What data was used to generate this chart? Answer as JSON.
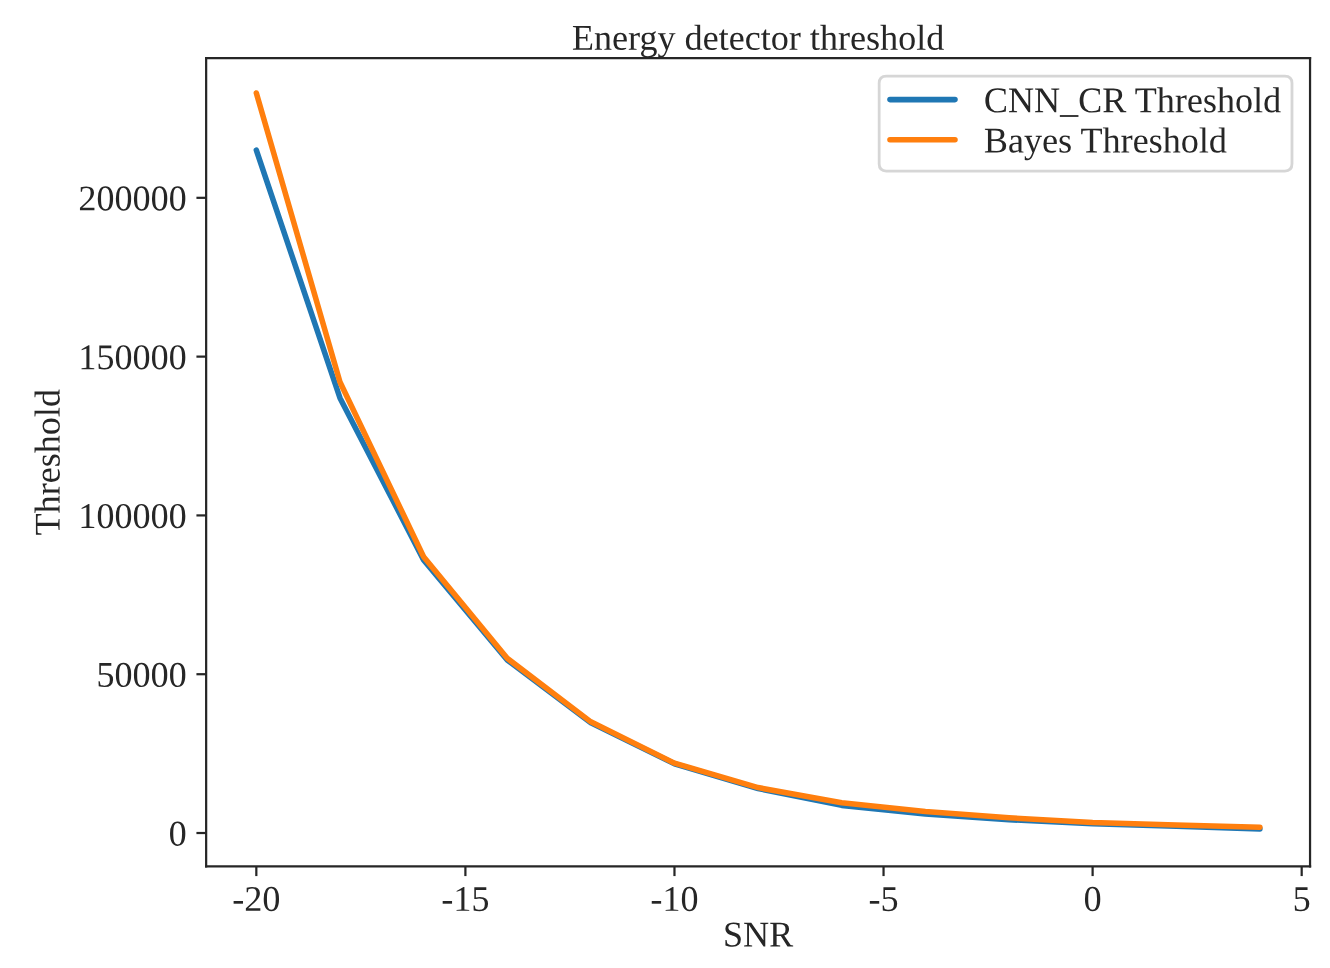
{
  "chart_data": {
    "type": "line",
    "title": "Energy detector threshold",
    "xlabel": "SNR",
    "ylabel": "Threshold",
    "x": [
      -20,
      -18,
      -16,
      -14,
      -12,
      -10,
      -8,
      -6,
      -4,
      -2,
      0,
      2,
      4
    ],
    "series": [
      {
        "name": "CNN_CR Threshold",
        "color": "#1f77b4",
        "values": [
          215000,
          137000,
          86000,
          54500,
          34700,
          21800,
          14000,
          8700,
          6000,
          4200,
          2900,
          2100,
          1300
        ]
      },
      {
        "name": "Bayes Threshold",
        "color": "#ff7f0e",
        "values": [
          233000,
          142000,
          87000,
          55000,
          35000,
          22000,
          14300,
          9500,
          6800,
          4800,
          3300,
          2500,
          1800
        ]
      }
    ],
    "xlim": [
      -21.2,
      5.2
    ],
    "ylim": [
      -10500,
      244000
    ],
    "xticks": [
      -20,
      -15,
      -10,
      -5,
      0,
      5
    ],
    "yticks": [
      0,
      50000,
      100000,
      150000,
      200000
    ],
    "grid": false,
    "legend": "top right",
    "marker": "none",
    "line_style": "solid"
  }
}
